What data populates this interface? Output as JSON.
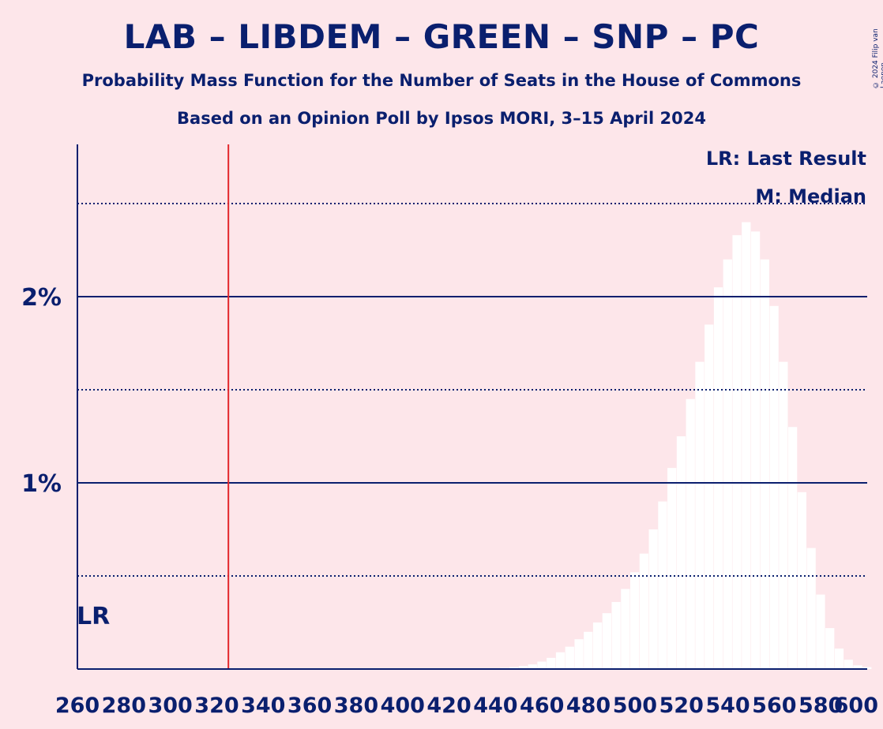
{
  "title": "LAB – LIBDEM – GREEN – SNP – PC",
  "subtitle1": "Probability Mass Function for the Number of Seats in the House of Commons",
  "subtitle2": "Based on an Opinion Poll by Ipsos MORI, 3–15 April 2024",
  "copyright": "© 2024 Filip van Laenen",
  "colors": {
    "background": "#fde6ea",
    "text": "#0a1f6e",
    "bars": "#ffffff",
    "last_result_line": "#e3262b"
  },
  "chart_data": {
    "type": "bar",
    "xlim": [
      260,
      600
    ],
    "ylim": [
      0,
      2.8
    ],
    "x_ticks": [
      "260",
      "280",
      "300",
      "320",
      "340",
      "360",
      "380",
      "400",
      "420",
      "440",
      "460",
      "480",
      "500",
      "520",
      "540",
      "560",
      "580",
      "600"
    ],
    "y_ticks": [
      {
        "value": 1,
        "label": "1%"
      },
      {
        "value": 2,
        "label": "2%"
      }
    ],
    "y_minor_gridlines": [
      0.5,
      1.5,
      2.5
    ],
    "last_result": {
      "seats": 325,
      "label": "LR"
    },
    "legend": {
      "last_result": "LR: Last Result",
      "median": "M: Median",
      "position": "top-right"
    },
    "x": [
      440,
      444,
      448,
      452,
      456,
      460,
      464,
      468,
      472,
      476,
      480,
      484,
      488,
      492,
      496,
      500,
      504,
      508,
      512,
      516,
      520,
      524,
      528,
      532,
      536,
      540,
      544,
      548,
      552,
      556,
      560,
      564,
      568,
      572,
      576,
      580,
      584,
      588,
      592,
      596,
      600
    ],
    "values": [
      0.003,
      0.006,
      0.01,
      0.016,
      0.025,
      0.04,
      0.06,
      0.09,
      0.12,
      0.16,
      0.2,
      0.25,
      0.3,
      0.36,
      0.43,
      0.52,
      0.62,
      0.75,
      0.9,
      1.08,
      1.25,
      1.45,
      1.65,
      1.85,
      2.05,
      2.2,
      2.33,
      2.4,
      2.35,
      2.2,
      1.95,
      1.65,
      1.3,
      0.95,
      0.65,
      0.4,
      0.22,
      0.11,
      0.05,
      0.02,
      0.01
    ]
  }
}
